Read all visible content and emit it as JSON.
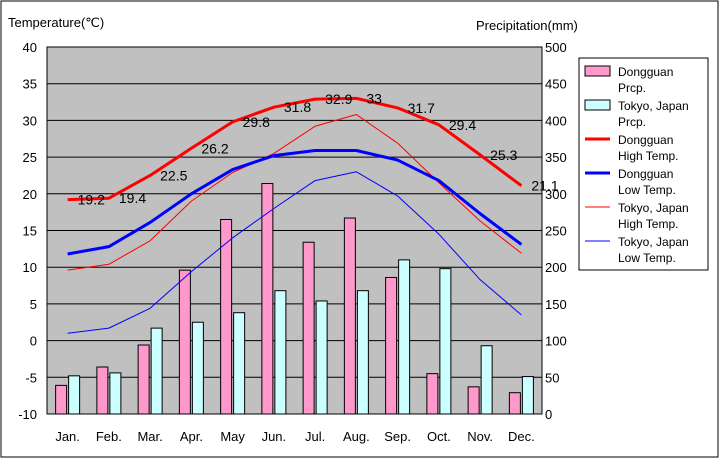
{
  "chart_data": {
    "type": "bar+line",
    "left_axis_title": "Temperature(℃)",
    "right_axis_title": "Precipitation(mm)",
    "left_ylim": [
      -10,
      40
    ],
    "left_ticks": [
      "40",
      "35",
      "30",
      "25",
      "20",
      "15",
      "10",
      "5",
      "0",
      "-5",
      "-10"
    ],
    "right_ylim": [
      0,
      500
    ],
    "right_ticks": [
      "500",
      "450",
      "400",
      "350",
      "300",
      "250",
      "200",
      "150",
      "100",
      "50",
      "0"
    ],
    "categories": [
      "Jan.",
      "Feb.",
      "Mar.",
      "Apr.",
      "May",
      "Jun.",
      "Jul.",
      "Aug.",
      "Sep.",
      "Oct.",
      "Nov.",
      "Dec."
    ],
    "grid": "horizontal",
    "background": "#c0c0c0",
    "legend_position": "right",
    "bar_series": [
      {
        "name": "Dongguan Prcp.",
        "legend_lines": [
          "Dongguan",
          "Prcp."
        ],
        "color": "#ff99cc",
        "values": [
          39,
          64,
          94,
          196,
          265,
          314,
          234,
          267,
          186,
          55,
          37,
          29
        ]
      },
      {
        "name": "Tokyo, Japan Prcp.",
        "legend_lines": [
          "Tokyo, Japan",
          "Prcp."
        ],
        "color": "#ccffff",
        "values": [
          52,
          56,
          117,
          125,
          138,
          168,
          154,
          168,
          210,
          198,
          93,
          51
        ]
      }
    ],
    "line_series": [
      {
        "name": "Dongguan High Temp.",
        "legend_lines": [
          "Dongguan",
          "High Temp."
        ],
        "color": "#ff0000",
        "width": 3,
        "values": [
          19.2,
          19.4,
          22.5,
          26.2,
          29.8,
          31.8,
          32.9,
          33,
          31.7,
          29.4,
          25.3,
          21.1
        ],
        "labels": [
          "19.2",
          "19.4",
          "22.5",
          "26.2",
          "29.8",
          "31.8",
          "32.9",
          "33",
          "31.7",
          "29.4",
          "25.3",
          "21.1"
        ]
      },
      {
        "name": "Dongguan Low Temp.",
        "legend_lines": [
          "Dongguan",
          "Low Temp."
        ],
        "color": "#0000ff",
        "width": 3,
        "values": [
          11.8,
          12.8,
          16.1,
          20.0,
          23.3,
          25.2,
          25.9,
          25.9,
          24.6,
          21.8,
          17.3,
          13.1
        ]
      },
      {
        "name": "Tokyo, Japan High Temp.",
        "legend_lines": [
          "Tokyo, Japan",
          "High Temp."
        ],
        "color": "#ff0000",
        "width": 1,
        "values": [
          9.6,
          10.4,
          13.6,
          19.0,
          22.9,
          25.5,
          29.2,
          30.8,
          26.9,
          21.5,
          16.3,
          11.9
        ]
      },
      {
        "name": "Tokyo, Japan Low Temp.",
        "legend_lines": [
          "Tokyo, Japan",
          "Low Temp."
        ],
        "color": "#0000ff",
        "width": 1,
        "values": [
          1.0,
          1.7,
          4.4,
          9.4,
          14.0,
          18.0,
          21.8,
          23.0,
          19.7,
          14.5,
          8.3,
          3.5
        ]
      }
    ]
  }
}
